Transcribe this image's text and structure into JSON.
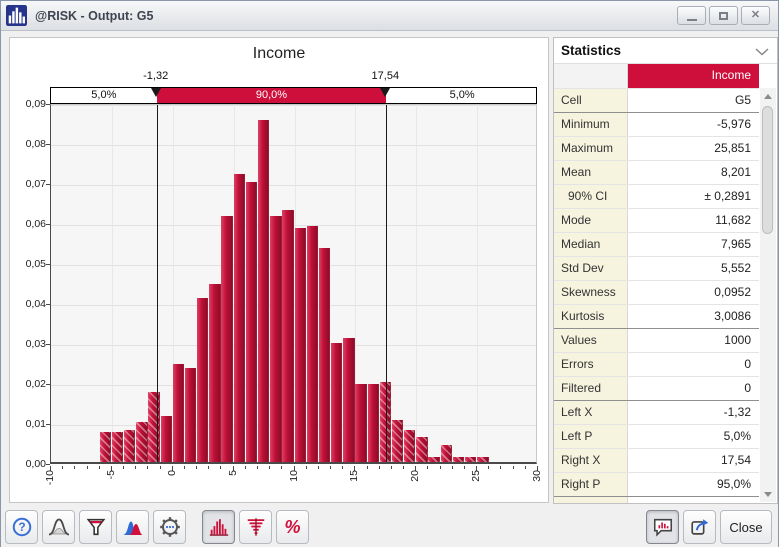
{
  "window": {
    "title": "@RISK - Output: G5"
  },
  "icons": {
    "close_glyph": "✕",
    "percent_glyph": "%"
  },
  "chart_data": {
    "type": "bar",
    "title": "Income",
    "xlabel": "",
    "ylabel": "",
    "xlim": [
      -10,
      30
    ],
    "ylim": [
      0,
      0.09
    ],
    "bin_width": 1,
    "grid": true,
    "x_ticks": [
      {
        "v": -10,
        "label": "-10"
      },
      {
        "v": -5,
        "label": "-5"
      },
      {
        "v": 0,
        "label": "0"
      },
      {
        "v": 5,
        "label": "5"
      },
      {
        "v": 10,
        "label": "10"
      },
      {
        "v": 15,
        "label": "15"
      },
      {
        "v": 20,
        "label": "20"
      },
      {
        "v": 25,
        "label": "25"
      },
      {
        "v": 30,
        "label": "30"
      }
    ],
    "y_ticks": [
      {
        "v": 0.0,
        "label": "0,00"
      },
      {
        "v": 0.01,
        "label": "0,01"
      },
      {
        "v": 0.02,
        "label": "0,02"
      },
      {
        "v": 0.03,
        "label": "0,03"
      },
      {
        "v": 0.04,
        "label": "0,04"
      },
      {
        "v": 0.05,
        "label": "0,05"
      },
      {
        "v": 0.06,
        "label": "0,06"
      },
      {
        "v": 0.07,
        "label": "0,07"
      },
      {
        "v": 0.08,
        "label": "0,08"
      },
      {
        "v": 0.09,
        "label": "0,09"
      }
    ],
    "bars": [
      {
        "x": -6,
        "v": 0.0075,
        "h": true
      },
      {
        "x": -5,
        "v": 0.0075,
        "h": true
      },
      {
        "x": -4,
        "v": 0.008,
        "h": true
      },
      {
        "x": -3,
        "v": 0.01,
        "h": true
      },
      {
        "x": -2,
        "v": 0.0175,
        "h": true
      },
      {
        "x": -1,
        "v": 0.0115
      },
      {
        "x": 0,
        "v": 0.0245
      },
      {
        "x": 1,
        "v": 0.0235
      },
      {
        "x": 2,
        "v": 0.041
      },
      {
        "x": 3,
        "v": 0.0445
      },
      {
        "x": 4,
        "v": 0.0615
      },
      {
        "x": 5,
        "v": 0.072
      },
      {
        "x": 6,
        "v": 0.07
      },
      {
        "x": 7,
        "v": 0.0855
      },
      {
        "x": 8,
        "v": 0.0615
      },
      {
        "x": 9,
        "v": 0.063
      },
      {
        "x": 10,
        "v": 0.0585
      },
      {
        "x": 11,
        "v": 0.059
      },
      {
        "x": 12,
        "v": 0.0535
      },
      {
        "x": 13,
        "v": 0.0297
      },
      {
        "x": 14,
        "v": 0.031
      },
      {
        "x": 15,
        "v": 0.0195
      },
      {
        "x": 16,
        "v": 0.0195
      },
      {
        "x": 17,
        "v": 0.02,
        "h": true
      },
      {
        "x": 18,
        "v": 0.0106,
        "h": true
      },
      {
        "x": 19,
        "v": 0.008,
        "h": true
      },
      {
        "x": 20,
        "v": 0.0062,
        "h": true
      },
      {
        "x": 21,
        "v": 0.0013,
        "h": true
      },
      {
        "x": 22,
        "v": 0.0042,
        "h": true
      },
      {
        "x": 23,
        "v": 0.0013,
        "h": true
      },
      {
        "x": 24,
        "v": 0.0013,
        "h": true
      },
      {
        "x": 25,
        "v": 0.0013,
        "h": true
      }
    ],
    "delimiters": {
      "left": {
        "x": -1.32,
        "label": "-1,32"
      },
      "right": {
        "x": 17.54,
        "label": "17,54"
      }
    },
    "bands": {
      "left": "5,0%",
      "center": "90,0%",
      "right": "5,0%"
    }
  },
  "statistics": {
    "panel_title": "Statistics",
    "column_header": "Income",
    "rows": [
      {
        "label": "Cell",
        "value": "G5"
      },
      {
        "label": "Minimum",
        "value": "-5,976",
        "sep": true
      },
      {
        "label": "Maximum",
        "value": "25,851"
      },
      {
        "label": "Mean",
        "value": "8,201"
      },
      {
        "label": "90% CI",
        "value": "± 0,2891",
        "indent": true
      },
      {
        "label": "Mode",
        "value": "11,682"
      },
      {
        "label": "Median",
        "value": "7,965"
      },
      {
        "label": "Std Dev",
        "value": "5,552"
      },
      {
        "label": "Skewness",
        "value": "0,0952"
      },
      {
        "label": "Kurtosis",
        "value": "3,0086"
      },
      {
        "label": "Values",
        "value": "1000",
        "sep": true
      },
      {
        "label": "Errors",
        "value": "0"
      },
      {
        "label": "Filtered",
        "value": "0"
      },
      {
        "label": "Left X",
        "value": "-1,32",
        "sep": true
      },
      {
        "label": "Left P",
        "value": "5,0%"
      },
      {
        "label": "Right X",
        "value": "17,54"
      },
      {
        "label": "Right P",
        "value": "95,0%"
      },
      {
        "label": "",
        "value": "",
        "sep": true
      }
    ]
  },
  "toolbar": {
    "close_label": "Close",
    "icon_buttons": [
      "help-icon",
      "bell-curve-icon",
      "filter-funnel-icon",
      "overlay-curves-icon",
      "settings-gear-icon",
      "histogram-icon",
      "tornado-icon",
      "percent-icon",
      "graph-callout-icon",
      "export-icon"
    ],
    "selected_buttons": [
      "histogram-button",
      "graph-callout-button"
    ]
  },
  "colors": {
    "crimson": "#CE0F3B",
    "bar_light": "#DE4164",
    "bar_mid": "#C01038",
    "bar_dark": "#8E0C28",
    "stat_label_bg": "#F6F3DF"
  }
}
